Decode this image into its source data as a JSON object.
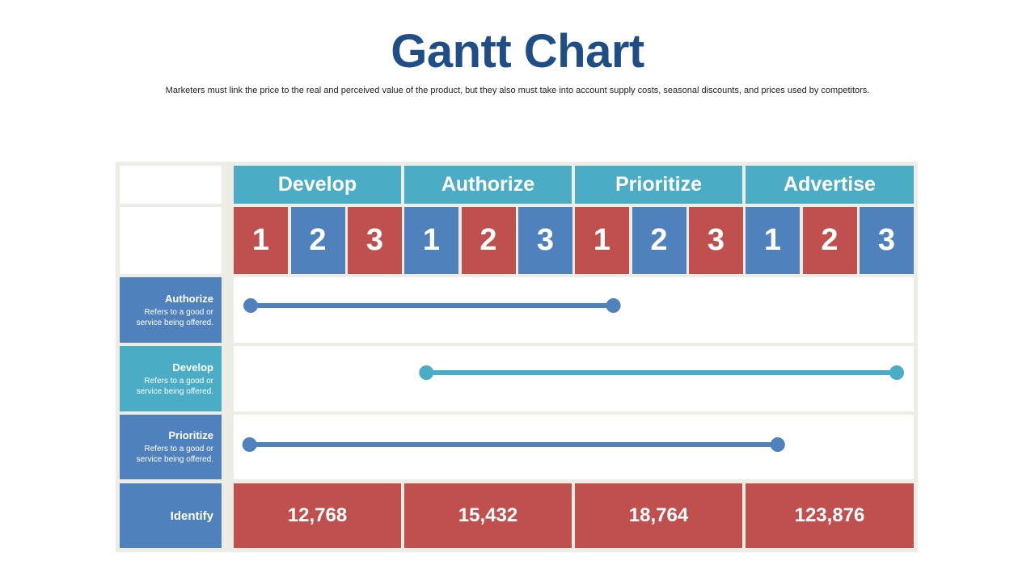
{
  "title": "Gantt Chart",
  "subtitle": "Marketers must link the price to the real and perceived value of the product, but they also must take into account supply costs, seasonal discounts, and prices used by competitors.",
  "phases": [
    {
      "label": "Develop"
    },
    {
      "label": "Authorize"
    },
    {
      "label": "Prioritize"
    },
    {
      "label": "Advertise"
    }
  ],
  "sub_columns": [
    {
      "label": "1",
      "color": "#c0504e"
    },
    {
      "label": "2",
      "color": "#4f81bd"
    },
    {
      "label": "3",
      "color": "#c0504e"
    },
    {
      "label": "1",
      "color": "#4f81bd"
    },
    {
      "label": "2",
      "color": "#c0504e"
    },
    {
      "label": "3",
      "color": "#4f81bd"
    },
    {
      "label": "1",
      "color": "#c0504e"
    },
    {
      "label": "2",
      "color": "#4f81bd"
    },
    {
      "label": "3",
      "color": "#c0504e"
    },
    {
      "label": "1",
      "color": "#4f81bd"
    },
    {
      "label": "2",
      "color": "#c0504e"
    },
    {
      "label": "3",
      "color": "#4f81bd"
    }
  ],
  "tasks": [
    {
      "name": "Authorize",
      "description": "Refers to a good or service being offered.",
      "label_color": "#4f81bd",
      "bar_color": "#4f81bd",
      "start": 0.3,
      "end": 6.7
    },
    {
      "name": "Develop",
      "description": "Refers to a good or service being offered.",
      "label_color": "#4aacc5",
      "bar_color": "#4aacc5",
      "start": 3.4,
      "end": 11.7
    },
    {
      "name": "Prioritize",
      "description": "Refers to a good or service being offered.",
      "label_color": "#4f81bd",
      "bar_color": "#4f81bd",
      "start": 0.28,
      "end": 9.6
    }
  ],
  "totals": {
    "label": "Identify",
    "values": [
      "12,768",
      "15,432",
      "18,764",
      "123,876"
    ]
  },
  "colors": {
    "title": "#1f4e87",
    "red": "#c0504e",
    "blue": "#4f81bd",
    "teal": "#4aacc5",
    "frame": "#eeede5"
  }
}
